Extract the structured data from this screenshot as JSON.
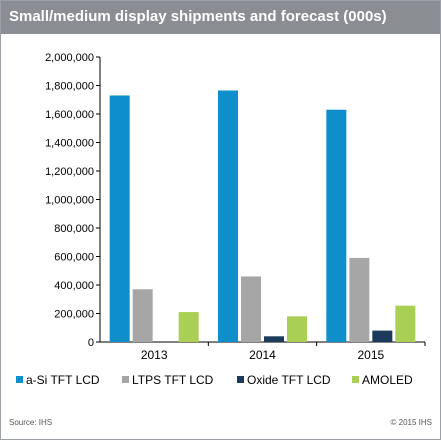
{
  "title": "Small/medium display shipments and forecast (000s)",
  "source": "Source: IHS",
  "copyright": "© 2015 IHS",
  "colors": {
    "a_si": "#0e8fcc",
    "ltps": "#a6a6a6",
    "oxide": "#1b3a5c",
    "amoled": "#a9cf54",
    "title_bg": "#8a8d91",
    "grid": "#000000"
  },
  "chart_data": {
    "type": "bar",
    "categories": [
      "2013",
      "2014",
      "2015"
    ],
    "series": [
      {
        "name": "a-Si TFT LCD",
        "values": [
          1730000,
          1765000,
          1630000
        ]
      },
      {
        "name": "LTPS TFT LCD",
        "values": [
          370000,
          460000,
          590000
        ]
      },
      {
        "name": "Oxide TFT LCD",
        "values": [
          0,
          40000,
          80000
        ]
      },
      {
        "name": "AMOLED",
        "values": [
          210000,
          180000,
          255000
        ]
      }
    ],
    "ylim": [
      0,
      2000000
    ],
    "yticks": [
      "0",
      "200,000",
      "400,000",
      "600,000",
      "800,000",
      "1,000,000",
      "1,200,000",
      "1,400,000",
      "1,600,000",
      "1,800,000",
      "2,000,000"
    ],
    "grid": false,
    "legend": "bottom"
  }
}
